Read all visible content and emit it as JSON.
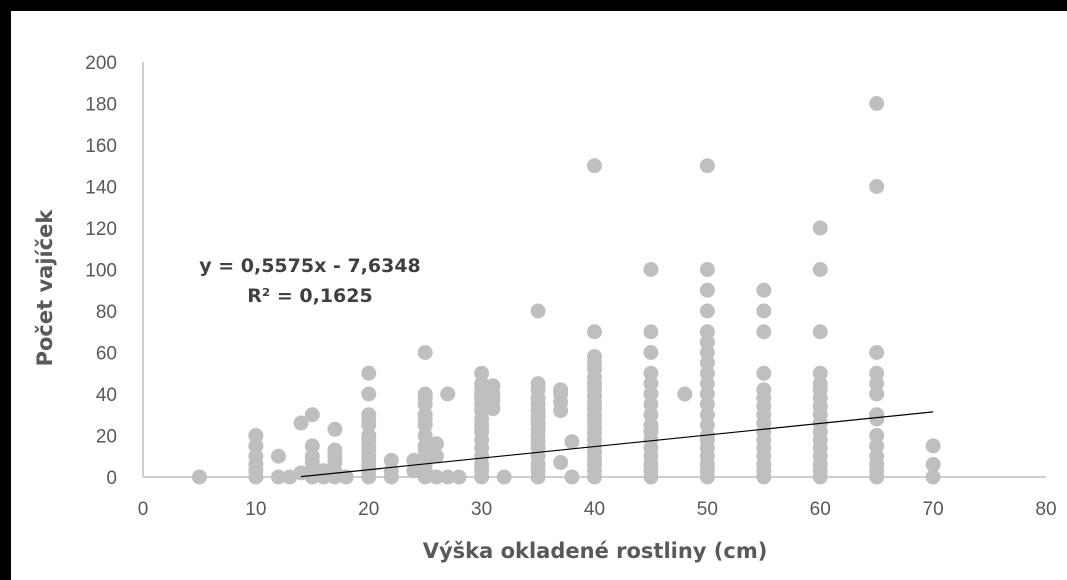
{
  "chart_data": {
    "type": "scatter",
    "xlabel": "Výška okladené rostliny (cm)",
    "ylabel": "Počet vajíček",
    "xlim": [
      0,
      80
    ],
    "ylim": [
      0,
      200
    ],
    "x_ticks": [
      "0",
      "10",
      "20",
      "30",
      "40",
      "50",
      "60",
      "70",
      "80"
    ],
    "y_ticks": [
      "0",
      "20",
      "40",
      "60",
      "80",
      "100",
      "120",
      "140",
      "160",
      "180",
      "200"
    ],
    "grid": false,
    "legend": "none",
    "marker_color": "#BFBFBF",
    "trendline": {
      "type": "linear",
      "slope": 0.5575,
      "intercept": -7.6348,
      "x_range": [
        14,
        70
      ],
      "color": "#000000",
      "equation_label": "y = 0,5575x - 7,6348",
      "r2_label": "R² = 0,1625"
    },
    "points": [
      [
        5,
        0
      ],
      [
        10,
        0
      ],
      [
        10,
        3
      ],
      [
        10,
        6
      ],
      [
        10,
        10
      ],
      [
        10,
        15
      ],
      [
        10,
        20
      ],
      [
        12,
        0
      ],
      [
        12,
        10
      ],
      [
        13,
        0
      ],
      [
        14,
        2
      ],
      [
        14,
        26
      ],
      [
        15,
        0
      ],
      [
        15,
        3
      ],
      [
        15,
        7
      ],
      [
        15,
        10
      ],
      [
        15,
        15
      ],
      [
        15,
        30
      ],
      [
        16,
        0
      ],
      [
        16,
        3
      ],
      [
        17,
        0
      ],
      [
        17,
        3
      ],
      [
        17,
        7
      ],
      [
        17,
        10
      ],
      [
        17,
        13
      ],
      [
        17,
        23
      ],
      [
        18,
        0
      ],
      [
        20,
        0
      ],
      [
        20,
        3
      ],
      [
        20,
        5
      ],
      [
        20,
        8
      ],
      [
        20,
        10
      ],
      [
        20,
        13
      ],
      [
        20,
        15
      ],
      [
        20,
        18
      ],
      [
        20,
        20
      ],
      [
        20,
        25
      ],
      [
        20,
        28
      ],
      [
        20,
        30
      ],
      [
        20,
        40
      ],
      [
        20,
        50
      ],
      [
        22,
        0
      ],
      [
        22,
        3
      ],
      [
        22,
        8
      ],
      [
        24,
        3
      ],
      [
        24,
        8
      ],
      [
        25,
        0
      ],
      [
        25,
        3
      ],
      [
        25,
        6
      ],
      [
        25,
        10
      ],
      [
        25,
        13
      ],
      [
        25,
        15
      ],
      [
        25,
        20
      ],
      [
        25,
        25
      ],
      [
        25,
        28
      ],
      [
        25,
        30
      ],
      [
        25,
        35
      ],
      [
        25,
        38
      ],
      [
        25,
        40
      ],
      [
        25,
        60
      ],
      [
        26,
        0
      ],
      [
        26,
        10
      ],
      [
        26,
        16
      ],
      [
        27,
        0
      ],
      [
        27,
        40
      ],
      [
        28,
        0
      ],
      [
        30,
        0
      ],
      [
        30,
        3
      ],
      [
        30,
        6
      ],
      [
        30,
        10
      ],
      [
        30,
        14
      ],
      [
        30,
        18
      ],
      [
        30,
        22
      ],
      [
        30,
        25
      ],
      [
        30,
        28
      ],
      [
        30,
        32
      ],
      [
        30,
        35
      ],
      [
        30,
        38
      ],
      [
        30,
        40
      ],
      [
        30,
        43
      ],
      [
        30,
        45
      ],
      [
        30,
        50
      ],
      [
        31,
        33
      ],
      [
        31,
        37
      ],
      [
        31,
        40
      ],
      [
        31,
        44
      ],
      [
        32,
        0
      ],
      [
        35,
        0
      ],
      [
        35,
        3
      ],
      [
        35,
        6
      ],
      [
        35,
        10
      ],
      [
        35,
        14
      ],
      [
        35,
        17
      ],
      [
        35,
        20
      ],
      [
        35,
        23
      ],
      [
        35,
        26
      ],
      [
        35,
        29
      ],
      [
        35,
        32
      ],
      [
        35,
        35
      ],
      [
        35,
        38
      ],
      [
        35,
        42
      ],
      [
        35,
        45
      ],
      [
        35,
        80
      ],
      [
        37,
        7
      ],
      [
        37,
        32
      ],
      [
        37,
        36
      ],
      [
        37,
        40
      ],
      [
        37,
        42
      ],
      [
        38,
        0
      ],
      [
        38,
        17
      ],
      [
        40,
        0
      ],
      [
        40,
        3
      ],
      [
        40,
        6
      ],
      [
        40,
        9
      ],
      [
        40,
        12
      ],
      [
        40,
        15
      ],
      [
        40,
        18
      ],
      [
        40,
        21
      ],
      [
        40,
        24
      ],
      [
        40,
        27
      ],
      [
        40,
        30
      ],
      [
        40,
        33
      ],
      [
        40,
        36
      ],
      [
        40,
        39
      ],
      [
        40,
        42
      ],
      [
        40,
        45
      ],
      [
        40,
        48
      ],
      [
        40,
        52
      ],
      [
        40,
        55
      ],
      [
        40,
        58
      ],
      [
        40,
        70
      ],
      [
        40,
        150
      ],
      [
        45,
        0
      ],
      [
        45,
        3
      ],
      [
        45,
        6
      ],
      [
        45,
        10
      ],
      [
        45,
        14
      ],
      [
        45,
        18
      ],
      [
        45,
        22
      ],
      [
        45,
        25
      ],
      [
        45,
        30
      ],
      [
        45,
        35
      ],
      [
        45,
        40
      ],
      [
        45,
        45
      ],
      [
        45,
        50
      ],
      [
        45,
        60
      ],
      [
        45,
        70
      ],
      [
        45,
        100
      ],
      [
        48,
        40
      ],
      [
        50,
        0
      ],
      [
        50,
        3
      ],
      [
        50,
        6
      ],
      [
        50,
        10
      ],
      [
        50,
        14
      ],
      [
        50,
        18
      ],
      [
        50,
        20
      ],
      [
        50,
        25
      ],
      [
        50,
        30
      ],
      [
        50,
        35
      ],
      [
        50,
        40
      ],
      [
        50,
        45
      ],
      [
        50,
        50
      ],
      [
        50,
        55
      ],
      [
        50,
        60
      ],
      [
        50,
        65
      ],
      [
        50,
        70
      ],
      [
        50,
        80
      ],
      [
        50,
        90
      ],
      [
        50,
        100
      ],
      [
        50,
        150
      ],
      [
        55,
        0
      ],
      [
        55,
        3
      ],
      [
        55,
        6
      ],
      [
        55,
        10
      ],
      [
        55,
        14
      ],
      [
        55,
        18
      ],
      [
        55,
        22
      ],
      [
        55,
        26
      ],
      [
        55,
        30
      ],
      [
        55,
        34
      ],
      [
        55,
        38
      ],
      [
        55,
        42
      ],
      [
        55,
        50
      ],
      [
        55,
        70
      ],
      [
        55,
        80
      ],
      [
        55,
        90
      ],
      [
        60,
        0
      ],
      [
        60,
        3
      ],
      [
        60,
        6
      ],
      [
        60,
        10
      ],
      [
        60,
        14
      ],
      [
        60,
        18
      ],
      [
        60,
        22
      ],
      [
        60,
        26
      ],
      [
        60,
        30
      ],
      [
        60,
        34
      ],
      [
        60,
        38
      ],
      [
        60,
        42
      ],
      [
        60,
        45
      ],
      [
        60,
        50
      ],
      [
        60,
        70
      ],
      [
        60,
        100
      ],
      [
        60,
        120
      ],
      [
        65,
        0
      ],
      [
        65,
        3
      ],
      [
        65,
        6
      ],
      [
        65,
        10
      ],
      [
        65,
        15
      ],
      [
        65,
        20
      ],
      [
        65,
        28
      ],
      [
        65,
        30
      ],
      [
        65,
        40
      ],
      [
        65,
        45
      ],
      [
        65,
        50
      ],
      [
        65,
        60
      ],
      [
        65,
        140
      ],
      [
        65,
        180
      ],
      [
        70,
        0
      ],
      [
        70,
        6
      ],
      [
        70,
        15
      ]
    ]
  }
}
